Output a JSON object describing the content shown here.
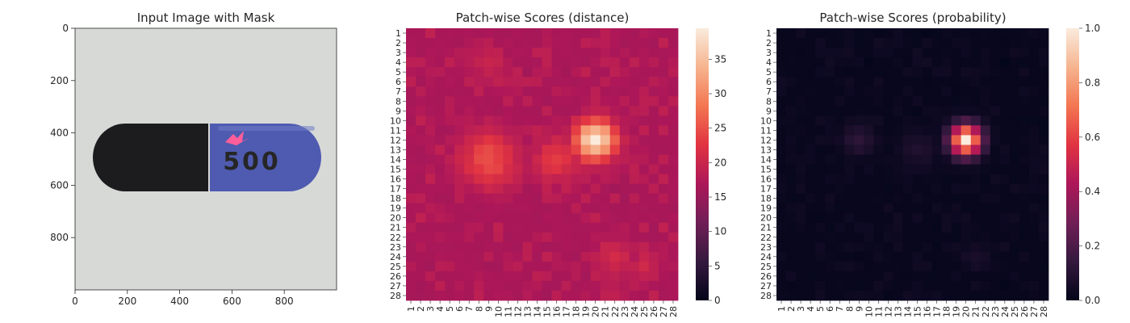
{
  "colors": {
    "text": "#262626",
    "cmap_rocket": [
      "#03051a",
      "#35193e",
      "#701f57",
      "#ad1759",
      "#e13342",
      "#f37651",
      "#f6b48f",
      "#faebdd"
    ],
    "background": "#d7d9d7",
    "capsule_black": "#1c1c1e",
    "capsule_blue": "#4f5bb0",
    "capsule_print": "#aeb6d9",
    "mask_highlight": "#ff5e9a"
  },
  "chart_data": [
    {
      "type": "image",
      "title": "Input Image with Mask",
      "xlabel": "",
      "ylabel": "",
      "xlim": [
        0,
        1000
      ],
      "ylim": [
        1000,
        0
      ],
      "xticks": [
        0,
        200,
        400,
        600,
        800
      ],
      "yticks": [
        0,
        200,
        400,
        600,
        800
      ],
      "capsule_print": "500",
      "mask": "pink logo mark on capsule"
    },
    {
      "type": "heatmap",
      "title": "Patch-wise Scores (distance)",
      "xlabel": "",
      "ylabel": "",
      "rows": 28,
      "cols": 28,
      "xticklabels": [
        "1",
        "2",
        "3",
        "4",
        "5",
        "6",
        "7",
        "8",
        "9",
        "10",
        "11",
        "12",
        "13",
        "14",
        "15",
        "16",
        "17",
        "18",
        "19",
        "20",
        "21",
        "22",
        "23",
        "24",
        "25",
        "26",
        "27",
        "28"
      ],
      "yticklabels": [
        "1",
        "2",
        "3",
        "4",
        "5",
        "6",
        "7",
        "8",
        "9",
        "10",
        "11",
        "12",
        "13",
        "14",
        "15",
        "16",
        "17",
        "18",
        "19",
        "20",
        "21",
        "22",
        "23",
        "24",
        "25",
        "26",
        "27",
        "28"
      ],
      "colorbar": {
        "min": 0,
        "max": 39.5,
        "ticks": [
          0,
          5,
          10,
          15,
          20,
          25,
          30,
          35
        ]
      },
      "base_value": 16,
      "hotspots": [
        {
          "row": 12,
          "col": 20,
          "value": 39,
          "spread": 1.5
        },
        {
          "row": 14,
          "col": 9,
          "value": 25,
          "spread": 2.2
        },
        {
          "row": 14,
          "col": 16,
          "value": 23,
          "spread": 1.8
        },
        {
          "row": 24,
          "col": 22,
          "value": 21,
          "spread": 1.5
        },
        {
          "row": 25,
          "col": 25,
          "value": 20,
          "spread": 1.3
        },
        {
          "row": 4,
          "col": 9,
          "value": 20,
          "spread": 1.5
        }
      ],
      "noise": 3
    },
    {
      "type": "heatmap",
      "title": "Patch-wise Scores (probability)",
      "xlabel": "",
      "ylabel": "",
      "rows": 28,
      "cols": 28,
      "xticklabels": [
        "1",
        "2",
        "3",
        "4",
        "5",
        "6",
        "7",
        "8",
        "9",
        "10",
        "11",
        "12",
        "13",
        "14",
        "15",
        "16",
        "17",
        "18",
        "19",
        "20",
        "21",
        "22",
        "23",
        "24",
        "25",
        "26",
        "27",
        "28"
      ],
      "yticklabels": [
        "1",
        "2",
        "3",
        "4",
        "5",
        "6",
        "7",
        "8",
        "9",
        "10",
        "11",
        "12",
        "13",
        "14",
        "15",
        "16",
        "17",
        "18",
        "19",
        "20",
        "21",
        "22",
        "23",
        "24",
        "25",
        "26",
        "27",
        "28"
      ],
      "colorbar": {
        "min": 0,
        "max": 1.0,
        "ticks": [
          0.0,
          0.2,
          0.4,
          0.6,
          0.8,
          1.0
        ],
        "ticklabels": [
          "0.0",
          "0.2",
          "0.4",
          "0.6",
          "0.8",
          "1.0"
        ]
      },
      "base_value": 0.01,
      "hotspots": [
        {
          "row": 12,
          "col": 20,
          "value": 1.0,
          "spread": 1.1
        },
        {
          "row": 12,
          "col": 9,
          "value": 0.12,
          "spread": 1.2
        },
        {
          "row": 13,
          "col": 15,
          "value": 0.08,
          "spread": 1.5
        },
        {
          "row": 24,
          "col": 21,
          "value": 0.07,
          "spread": 1.0
        }
      ],
      "noise": 0.03
    }
  ]
}
